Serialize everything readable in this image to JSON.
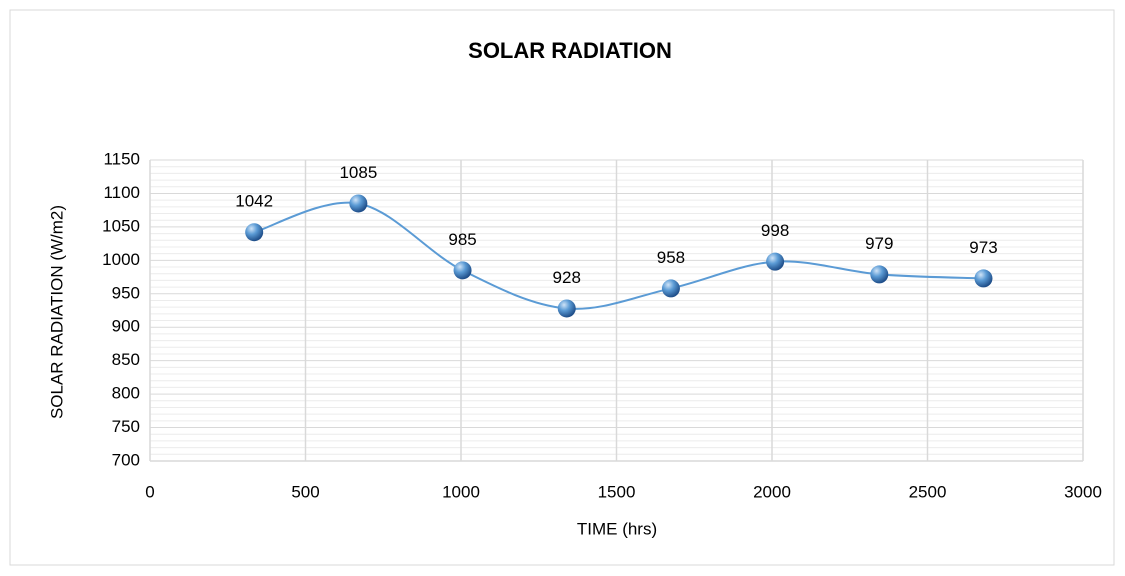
{
  "chart_data": {
    "type": "scatter",
    "title": "SOLAR RADIATION",
    "x_label": "TIME (hrs)",
    "y_label": "SOLAR  RADIATION (W/m2)",
    "series": [
      {
        "name": "SOLAR RADIATION",
        "color": "#5b9bd5",
        "x": [
          335,
          670,
          1005,
          1340,
          1675,
          2010,
          2345,
          2680
        ],
        "values": [
          1042,
          1085,
          985,
          928,
          958,
          998,
          979,
          973
        ]
      }
    ],
    "smooth": true,
    "data_labels": true,
    "xlim": [
      0,
      3000
    ],
    "xticks": [
      0,
      500,
      1000,
      1500,
      2000,
      2500,
      3000
    ],
    "ylim": [
      700,
      1150
    ],
    "yticks": [
      700,
      750,
      800,
      850,
      900,
      950,
      1000,
      1050,
      1100,
      1150
    ],
    "grid": true,
    "minor_grid": true
  }
}
